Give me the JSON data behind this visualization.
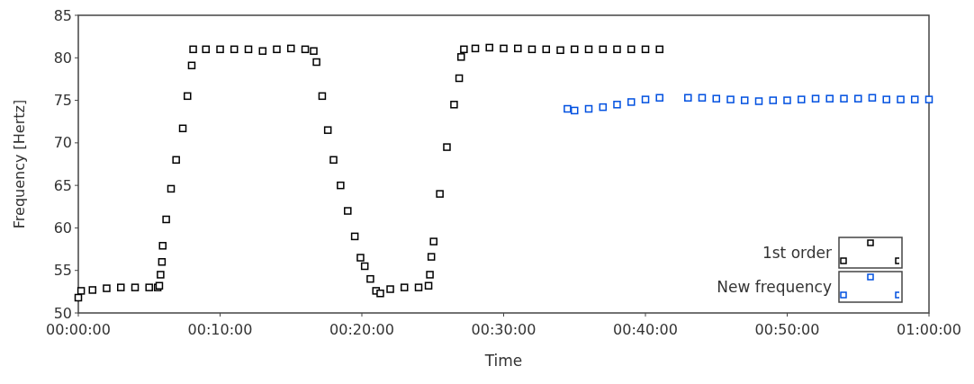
{
  "chart_data": {
    "type": "scatter",
    "xlabel": "Time",
    "ylabel": "Frequency [Hertz]",
    "marker": "square",
    "grid": false,
    "legend": "bottom right",
    "xlim": [
      0,
      1
    ],
    "xticks": [
      {
        "value": 0,
        "label": "00:00:00"
      },
      {
        "value": 0.16667,
        "label": "00:10:00"
      },
      {
        "value": 0.33333,
        "label": "00:20:00"
      },
      {
        "value": 0.5,
        "label": "00:30:00"
      },
      {
        "value": 0.66667,
        "label": "00:40:00"
      },
      {
        "value": 0.83333,
        "label": "00:50:00"
      },
      {
        "value": 1,
        "label": "01:00:00"
      }
    ],
    "ylim": [
      50,
      85
    ],
    "yticks": [
      50,
      55,
      60,
      65,
      70,
      75,
      80,
      85
    ],
    "series": [
      {
        "name": "1st order",
        "color": "#000000",
        "x": [
          0,
          0.0033,
          0.0167,
          0.0333,
          0.05,
          0.0667,
          0.0833,
          0.0933,
          0.0952,
          0.0967,
          0.0983,
          0.0992,
          0.1033,
          0.109,
          0.115,
          0.1228,
          0.1283,
          0.1333,
          0.135,
          0.15,
          0.1667,
          0.1833,
          0.2,
          0.2167,
          0.2333,
          0.25,
          0.2667,
          0.2767,
          0.28,
          0.2867,
          0.2933,
          0.3,
          0.3083,
          0.3167,
          0.325,
          0.3317,
          0.3367,
          0.3433,
          0.35,
          0.355,
          0.3667,
          0.3833,
          0.4,
          0.4117,
          0.4133,
          0.415,
          0.4177,
          0.425,
          0.4333,
          0.4417,
          0.4477,
          0.45,
          0.4533,
          0.4667,
          0.4833,
          0.5,
          0.5167,
          0.5333,
          0.55,
          0.5667,
          0.5833,
          0.6,
          0.6167,
          0.6333,
          0.65,
          0.6667,
          0.6833
        ],
        "values": [
          51.8,
          52.6,
          52.7,
          52.9,
          53.0,
          53.0,
          53.0,
          53.0,
          53.2,
          54.5,
          56.0,
          57.9,
          61.0,
          64.6,
          68.0,
          71.7,
          75.5,
          79.1,
          81.0,
          81.0,
          81.0,
          81.0,
          81.0,
          80.8,
          81.0,
          81.1,
          81.0,
          80.8,
          79.5,
          75.5,
          71.5,
          68.0,
          65.0,
          62.0,
          59.0,
          56.5,
          55.5,
          54.0,
          52.6,
          52.3,
          52.8,
          53.0,
          53.0,
          53.2,
          54.5,
          56.6,
          58.4,
          64.0,
          69.5,
          74.5,
          77.6,
          80.1,
          81.0,
          81.1,
          81.2,
          81.1,
          81.1,
          81.0,
          81.0,
          80.9,
          81.0,
          81.0,
          81.0,
          81.0,
          81.0,
          81.0,
          81.0
        ]
      },
      {
        "name": "New frequency",
        "color": "#0050e0",
        "x": [
          0.575,
          0.5833,
          0.6,
          0.6167,
          0.6333,
          0.65,
          0.6667,
          0.6833,
          0.7167,
          0.7333,
          0.75,
          0.7667,
          0.7833,
          0.8,
          0.8167,
          0.8333,
          0.85,
          0.8667,
          0.8833,
          0.9,
          0.9167,
          0.9333,
          0.95,
          0.9667,
          0.9833,
          1
        ],
        "values": [
          74.0,
          73.8,
          74.0,
          74.2,
          74.5,
          74.8,
          75.1,
          75.3,
          75.3,
          75.3,
          75.2,
          75.1,
          75.0,
          74.9,
          75.0,
          75.0,
          75.1,
          75.2,
          75.2,
          75.2,
          75.2,
          75.3,
          75.1,
          75.1,
          75.1,
          75.1
        ]
      }
    ]
  }
}
